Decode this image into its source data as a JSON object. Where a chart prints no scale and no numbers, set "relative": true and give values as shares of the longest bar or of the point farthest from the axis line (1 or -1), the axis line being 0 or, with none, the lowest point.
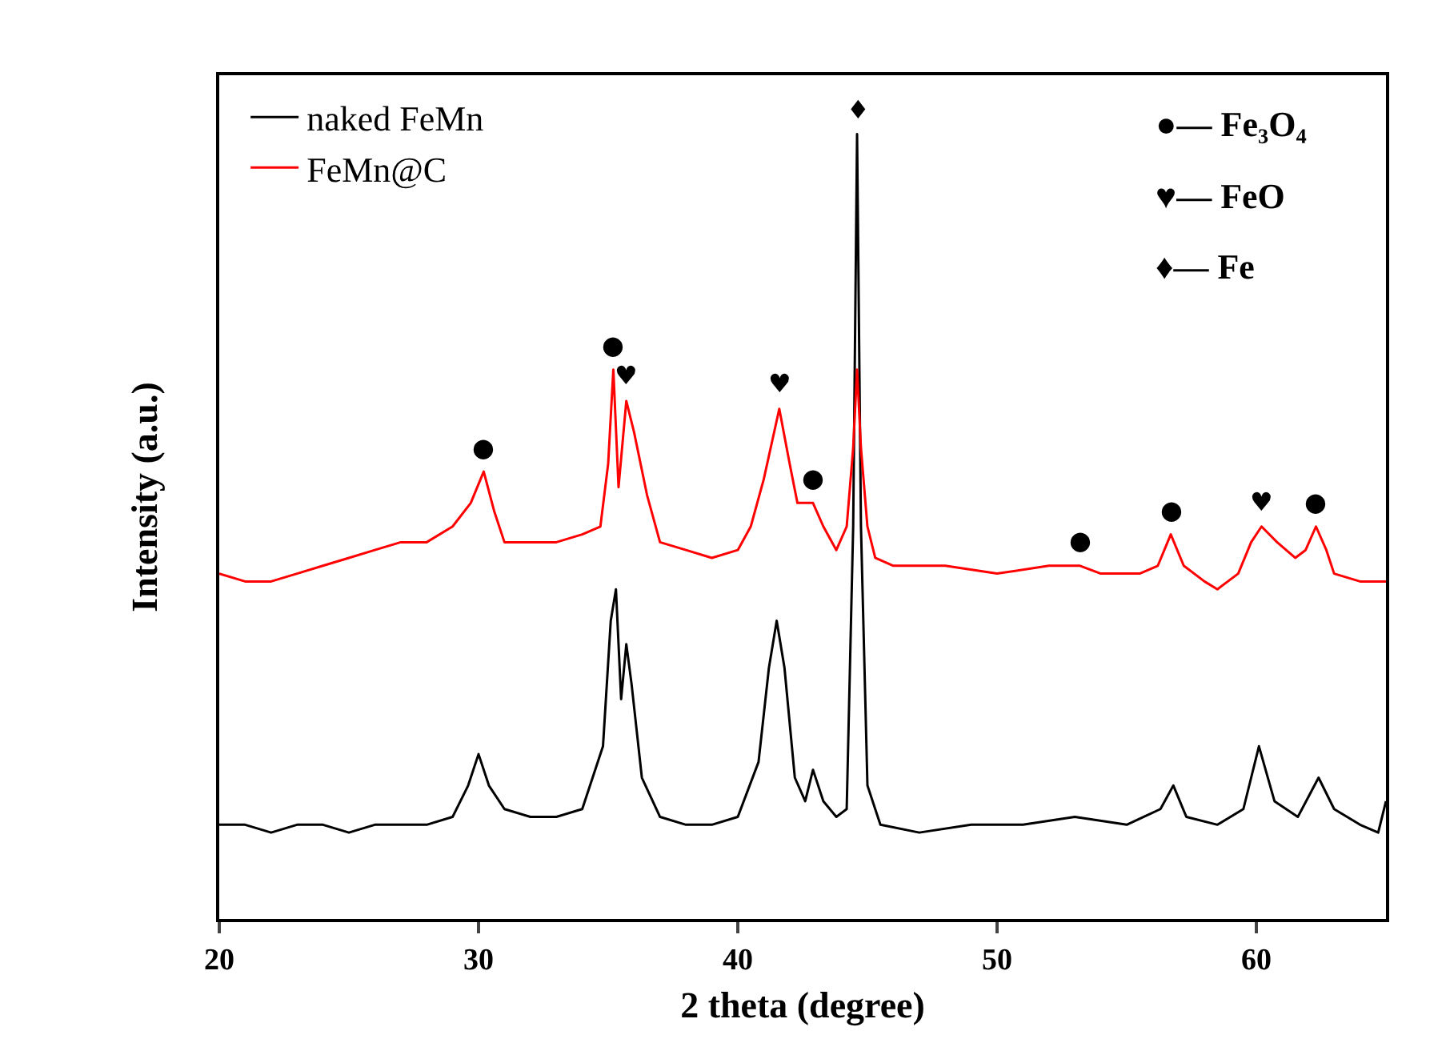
{
  "chart_data": {
    "type": "line",
    "relative": true,
    "xlabel": "2 theta (degree)",
    "ylabel": "Intensity (a.u.)",
    "xlim": [
      20,
      65
    ],
    "xticks": [
      20,
      30,
      40,
      50,
      60
    ],
    "grid": false,
    "legend": "top left",
    "marker": "none",
    "line_style": "solid",
    "series": [
      {
        "name": "naked FeMn",
        "color": "#000000",
        "x": [
          20,
          21,
          22,
          23,
          24,
          25,
          26,
          27,
          28,
          29,
          29.6,
          30,
          30.4,
          31,
          32,
          33,
          34,
          34.8,
          35.1,
          35.3,
          35.5,
          35.7,
          35.9,
          36.3,
          37,
          38,
          39,
          40,
          40.8,
          41.2,
          41.5,
          41.8,
          42.2,
          42.6,
          42.9,
          43.3,
          43.8,
          44.2,
          44.45,
          44.6,
          44.75,
          45,
          45.5,
          47,
          49,
          51,
          53,
          55,
          56.3,
          56.8,
          57.3,
          58.5,
          59.5,
          60.1,
          60.7,
          61.6,
          62.4,
          63,
          64,
          64.7,
          65
        ],
        "values": [
          0.12,
          0.12,
          0.11,
          0.12,
          0.12,
          0.11,
          0.12,
          0.12,
          0.12,
          0.13,
          0.17,
          0.21,
          0.17,
          0.14,
          0.13,
          0.13,
          0.14,
          0.22,
          0.38,
          0.42,
          0.28,
          0.35,
          0.3,
          0.18,
          0.13,
          0.12,
          0.12,
          0.13,
          0.2,
          0.32,
          0.38,
          0.32,
          0.18,
          0.15,
          0.19,
          0.15,
          0.13,
          0.14,
          0.5,
          1,
          0.5,
          0.17,
          0.12,
          0.11,
          0.12,
          0.12,
          0.13,
          0.12,
          0.14,
          0.17,
          0.13,
          0.12,
          0.14,
          0.22,
          0.15,
          0.13,
          0.18,
          0.14,
          0.12,
          0.11,
          0.15
        ]
      },
      {
        "name": "FeMn@C",
        "color": "#ff0000",
        "x": [
          20,
          21,
          22,
          23,
          24,
          25,
          26,
          27,
          28,
          29,
          29.7,
          30.2,
          30.6,
          31,
          32,
          33,
          34,
          34.7,
          35.0,
          35.2,
          35.4,
          35.7,
          36.0,
          36.5,
          37,
          38,
          39,
          40,
          40.5,
          41.0,
          41.6,
          42.0,
          42.3,
          42.9,
          43.3,
          43.8,
          44.2,
          44.45,
          44.6,
          44.75,
          45,
          45.3,
          46,
          48,
          50,
          52,
          53.2,
          54,
          55.5,
          56.2,
          56.7,
          57.2,
          58,
          58.5,
          59.3,
          59.8,
          60.2,
          60.8,
          61.5,
          61.9,
          62.3,
          62.7,
          63,
          64,
          65
        ],
        "values": [
          0.44,
          0.43,
          0.43,
          0.44,
          0.45,
          0.46,
          0.47,
          0.48,
          0.48,
          0.5,
          0.53,
          0.57,
          0.52,
          0.48,
          0.48,
          0.48,
          0.49,
          0.5,
          0.58,
          0.7,
          0.55,
          0.66,
          0.62,
          0.54,
          0.48,
          0.47,
          0.46,
          0.47,
          0.5,
          0.56,
          0.65,
          0.58,
          0.53,
          0.53,
          0.5,
          0.47,
          0.5,
          0.6,
          0.7,
          0.6,
          0.5,
          0.46,
          0.45,
          0.45,
          0.44,
          0.45,
          0.45,
          0.44,
          0.44,
          0.45,
          0.49,
          0.45,
          0.43,
          0.42,
          0.44,
          0.48,
          0.5,
          0.48,
          0.46,
          0.47,
          0.5,
          0.47,
          0.44,
          0.43,
          0.43
        ]
      }
    ],
    "annotations": [
      {
        "text": "●",
        "x": 30.2,
        "y": 0.57
      },
      {
        "text": "●",
        "x": 35.2,
        "y": 0.7
      },
      {
        "text": "♥",
        "x": 35.7,
        "y": 0.66
      },
      {
        "text": "♥",
        "x": 41.6,
        "y": 0.65
      },
      {
        "text": "●",
        "x": 42.9,
        "y": 0.53
      },
      {
        "text": "♦",
        "x": 44.6,
        "y": 1
      },
      {
        "text": "●",
        "x": 53.2,
        "y": 0.45
      },
      {
        "text": "●",
        "x": 56.7,
        "y": 0.49
      },
      {
        "text": "♥",
        "x": 60.2,
        "y": 0.5
      },
      {
        "text": "●",
        "x": 62.3,
        "y": 0.5
      },
      "●— Fe₃O₄",
      "♥— FeO",
      "♦— Fe"
    ]
  }
}
